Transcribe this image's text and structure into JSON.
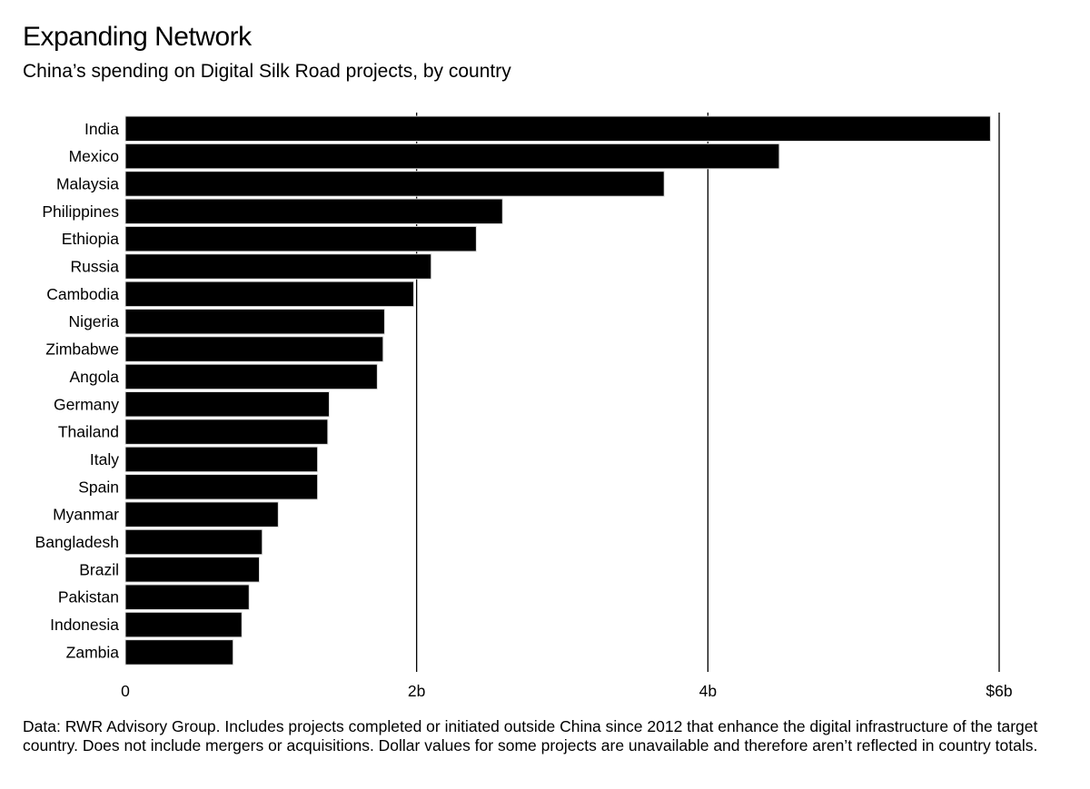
{
  "chart_data": {
    "type": "bar",
    "orientation": "horizontal",
    "title": "Expanding Network",
    "subtitle": "China’s spending on Digital Silk Road projects, by country",
    "categories": [
      "India",
      "Mexico",
      "Malaysia",
      "Philippines",
      "Ethiopia",
      "Russia",
      "Cambodia",
      "Nigeria",
      "Zimbabwe",
      "Angola",
      "Germany",
      "Thailand",
      "Italy",
      "Spain",
      "Myanmar",
      "Bangladesh",
      "Brazil",
      "Pakistan",
      "Indonesia",
      "Zambia"
    ],
    "values": [
      5.94,
      4.49,
      3.7,
      2.59,
      2.41,
      2.1,
      1.98,
      1.78,
      1.77,
      1.73,
      1.4,
      1.39,
      1.32,
      1.32,
      1.05,
      0.94,
      0.92,
      0.85,
      0.8,
      0.74
    ],
    "unit": "billion USD",
    "xlim": [
      0,
      6
    ],
    "xticks": [
      0,
      2,
      4,
      6
    ],
    "xtick_labels": [
      "0",
      "2b",
      "4b",
      "$6b"
    ],
    "grid": true,
    "bar_color": "#000000",
    "footnote": "Data: RWR Advisory Group. Includes projects completed or initiated outside China since 2012 that enhance the digital infrastructure of the target country. Does not include mergers or acquisitions. Dollar values for some projects are unavailable and therefore aren’t reflected in country totals."
  }
}
